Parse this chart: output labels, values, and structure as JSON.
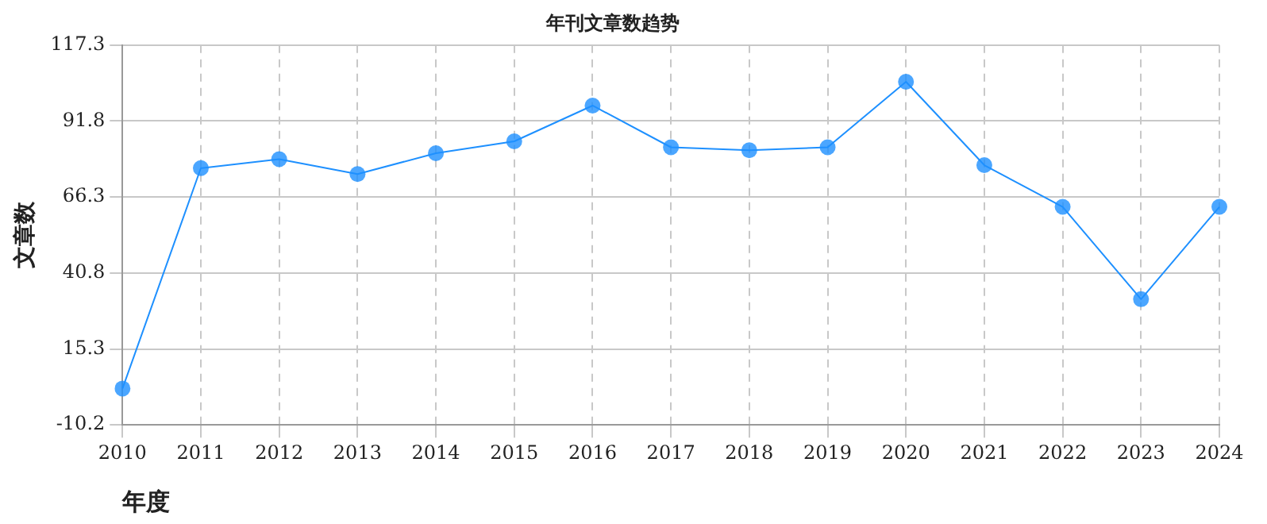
{
  "chart_data": {
    "type": "line",
    "title": "年刊文章数趋势",
    "xlabel": "年度",
    "ylabel": "文章数",
    "categories": [
      "2010",
      "2011",
      "2012",
      "2013",
      "2014",
      "2015",
      "2016",
      "2017",
      "2018",
      "2019",
      "2020",
      "2021",
      "2022",
      "2023",
      "2024"
    ],
    "series": [
      {
        "color": "#1e90ff",
        "values": [
          2,
          76,
          79,
          74,
          81,
          85,
          97,
          83,
          82,
          83,
          105,
          77,
          63,
          32,
          63
        ]
      }
    ],
    "ylim": [
      -10.2,
      117.3
    ],
    "yticks": [
      -10.2,
      15.3,
      40.8,
      66.3,
      91.8,
      117.3
    ],
    "grid": true,
    "legend": false,
    "marker": "circle",
    "line_style": "solid"
  }
}
